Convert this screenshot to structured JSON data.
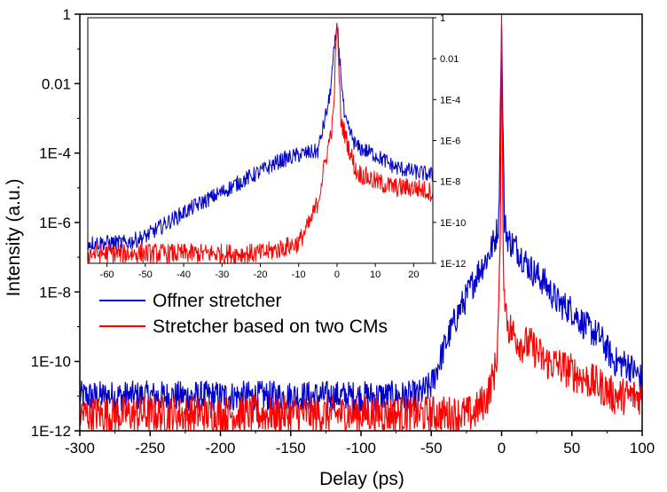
{
  "chart_data": [
    {
      "type": "line",
      "role": "main",
      "xlabel": "Delay (ps)",
      "ylabel": "Intensity (a.u.)",
      "xlim": [
        -300,
        100
      ],
      "ylim": [
        1e-12,
        1
      ],
      "yscale": "log",
      "x_ticks": [
        -300,
        -250,
        -200,
        -150,
        -100,
        -50,
        0,
        50,
        100
      ],
      "x_tick_labels": [
        "-300",
        "-250",
        "-200",
        "-150",
        "-100",
        "-50",
        "0",
        "50",
        "100"
      ],
      "y_ticks": [
        1e-12,
        1e-10,
        1e-08,
        1e-06,
        0.0001,
        0.01,
        1
      ],
      "y_tick_labels": [
        "1E-12",
        "1E-10",
        "1E-8",
        "1E-6",
        "1E-4",
        "0.01",
        "1"
      ],
      "grid": false,
      "legend_position": "lower-left of plot, below inset",
      "series": [
        {
          "name": "Offner stretcher",
          "color": "#0000cc",
          "x": [
            -300,
            -250,
            -200,
            -150,
            -100,
            -60,
            -50,
            -45,
            -40,
            -35,
            -30,
            -25,
            -20,
            -15,
            -10,
            -5,
            -2,
            0,
            2,
            5,
            10,
            15,
            20,
            25,
            30,
            40,
            50,
            60,
            70,
            80,
            90,
            100
          ],
          "y": [
            1e-11,
            1e-11,
            1e-11,
            1e-11,
            1e-11,
            1e-11,
            2e-11,
            8e-11,
            3e-10,
            1e-09,
            3e-09,
            7e-09,
            2e-08,
            5e-08,
            1e-07,
            3e-07,
            1e-06,
            0.5,
            1e-06,
            3e-07,
            2e-07,
            1e-07,
            5e-08,
            3e-08,
            2e-08,
            5e-09,
            3e-09,
            1e-09,
            5e-10,
            1e-10,
            8e-11,
            3e-11
          ]
        },
        {
          "name": "Stretcher based on two CMs",
          "color": "#ff0000",
          "x": [
            -300,
            -250,
            -200,
            -150,
            -100,
            -50,
            -20,
            -10,
            -5,
            -3,
            -1,
            0,
            1,
            3,
            5,
            10,
            15,
            20,
            25,
            30,
            40,
            50,
            60,
            70,
            80,
            90,
            100
          ],
          "y": [
            3e-12,
            3e-12,
            3e-12,
            3e-12,
            3e-12,
            3e-12,
            3e-12,
            1e-11,
            5e-11,
            2e-10,
            1e-07,
            1,
            1e-07,
            3e-09,
            1e-09,
            5e-10,
            3e-10,
            3e-10,
            2e-10,
            1e-10,
            8e-11,
            5e-11,
            3e-11,
            2e-11,
            1e-11,
            1e-11,
            1e-11
          ]
        }
      ]
    },
    {
      "type": "line",
      "role": "inset",
      "xlim": [
        -65,
        25
      ],
      "ylim": [
        1e-12,
        1
      ],
      "yscale": "log",
      "x_ticks": [
        -60,
        -50,
        -40,
        -30,
        -20,
        -10,
        0,
        10,
        20
      ],
      "x_tick_labels": [
        "-60",
        "-50",
        "-40",
        "-30",
        "-20",
        "-10",
        "0",
        "10",
        "20"
      ],
      "y_ticks": [
        1e-12,
        1e-10,
        1e-08,
        1e-06,
        0.0001,
        0.01,
        1
      ],
      "y_tick_labels": [
        "1E-12",
        "1E-10",
        "1E-8",
        "1E-6",
        "1E-4",
        "0.01",
        "1"
      ],
      "grid": false,
      "series": [
        {
          "color": "#0000cc",
          "x": [
            -65,
            -60,
            -55,
            -50,
            -45,
            -40,
            -35,
            -30,
            -25,
            -20,
            -15,
            -10,
            -5,
            -2,
            0,
            2,
            5,
            10,
            15,
            20,
            25
          ],
          "y": [
            1e-11,
            1e-11,
            1e-11,
            2e-11,
            8e-11,
            3e-10,
            1e-09,
            3e-09,
            1e-08,
            3e-08,
            1e-07,
            2e-07,
            3e-07,
            0.0001,
            0.5,
            1e-05,
            5e-07,
            2e-07,
            5e-08,
            3e-08,
            2e-08
          ]
        },
        {
          "color": "#ff0000",
          "x": [
            -65,
            -60,
            -50,
            -40,
            -30,
            -20,
            -15,
            -10,
            -7,
            -5,
            -3,
            -1,
            0,
            1,
            3,
            5,
            10,
            15,
            20,
            25
          ],
          "y": [
            3e-12,
            3e-12,
            3e-12,
            3e-12,
            3e-12,
            3e-12,
            5e-12,
            1e-11,
            1e-10,
            1e-09,
            1e-07,
            1e-05,
            1,
            1e-05,
            5e-07,
            3e-08,
            1e-08,
            5e-09,
            5e-09,
            3e-09
          ]
        }
      ]
    }
  ]
}
